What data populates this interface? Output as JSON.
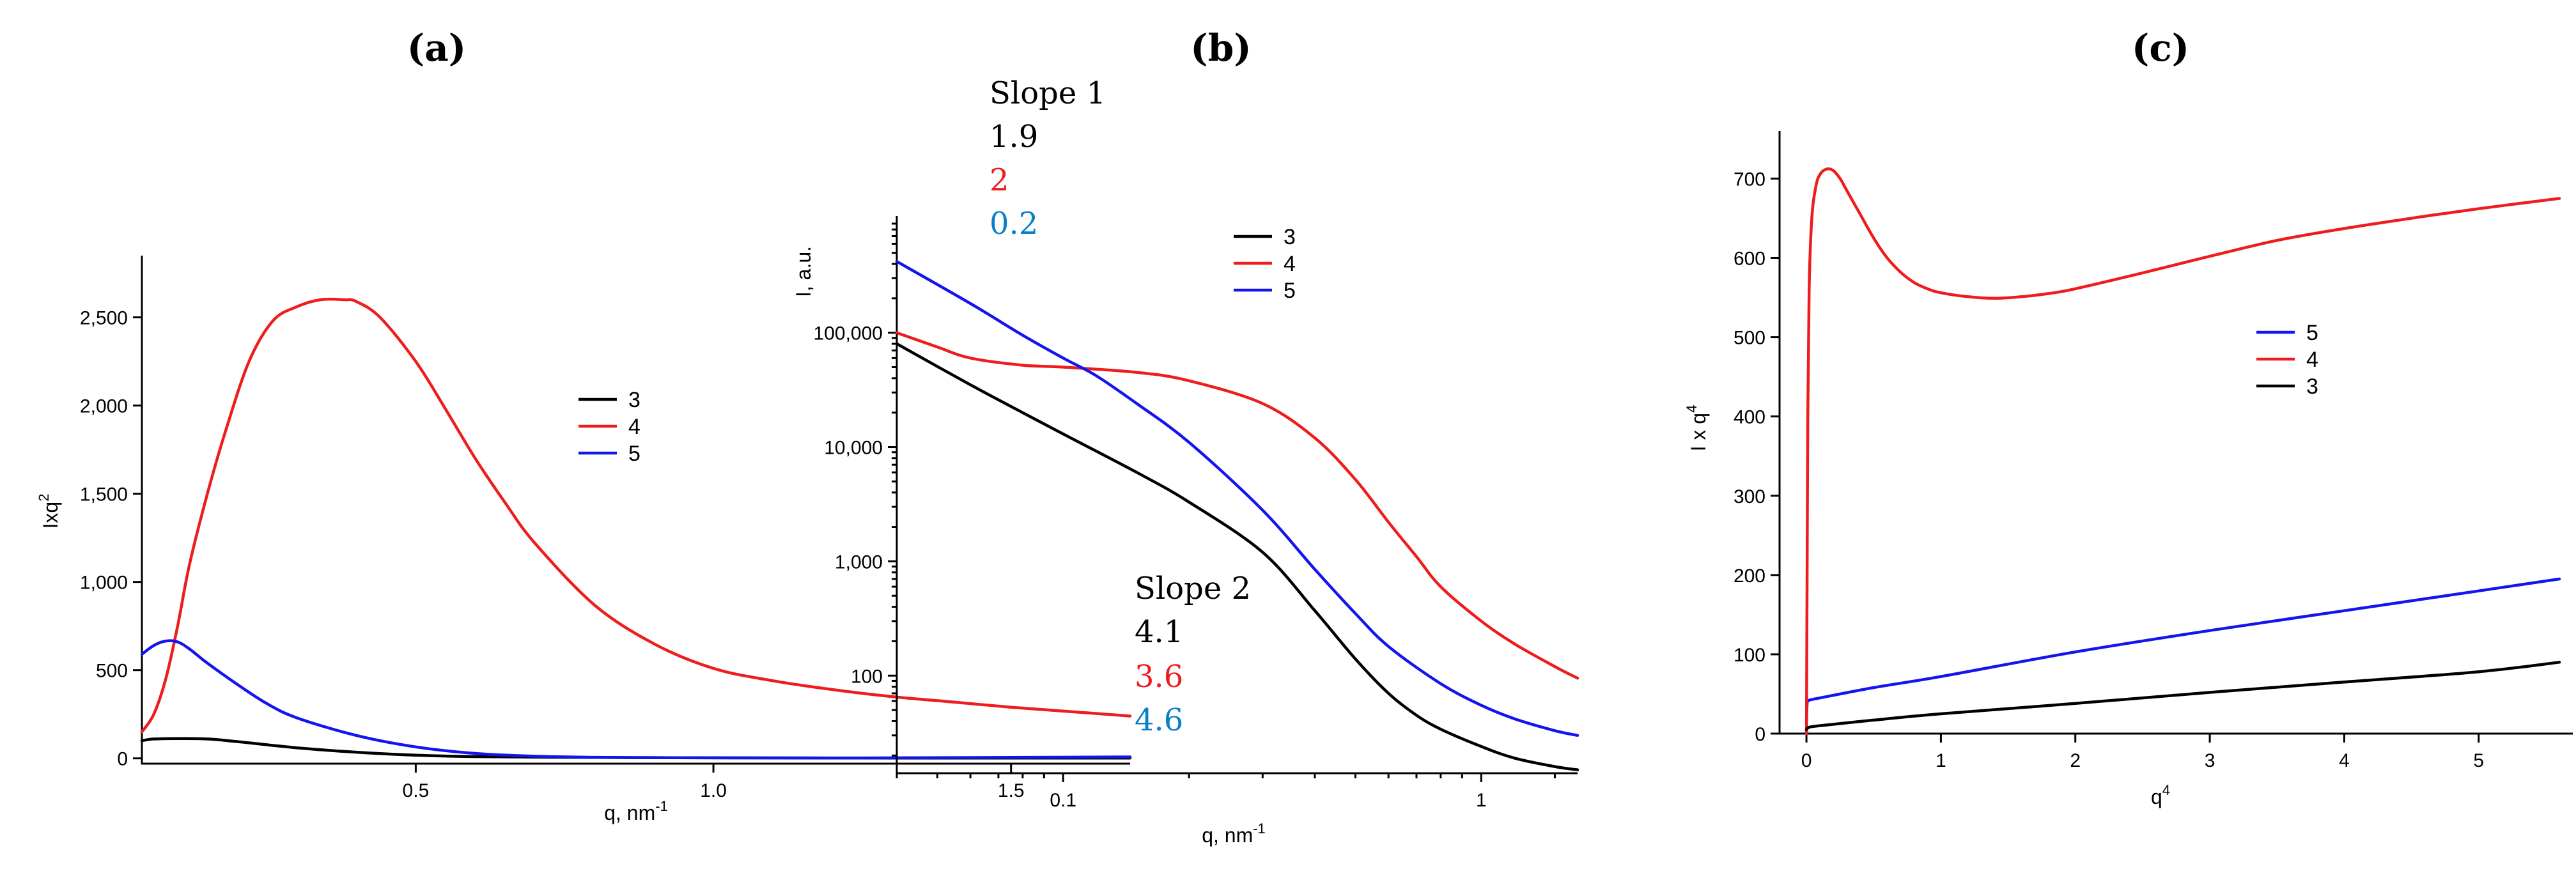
{
  "colors": {
    "s3": "#000000",
    "s4": "#ee1c1c",
    "s5": "#1414ee",
    "cyan": "#0a7fc7"
  },
  "chart_data": [
    {
      "id": "a",
      "type": "line",
      "title": "(a)",
      "xlabel": "q, nm",
      "xlabel_sup": "-1",
      "ylabel": "Ixq",
      "ylabel_sup": "2",
      "xlim": [
        0.04,
        1.7
      ],
      "ylim": [
        -30,
        2850
      ],
      "xticks": [
        0.5,
        1.0,
        1.5
      ],
      "xtick_labels": [
        "0.5",
        "1.0",
        "1.5"
      ],
      "yticks": [
        0,
        500,
        1000,
        1500,
        2000,
        2500
      ],
      "ytick_labels": [
        "0",
        "500",
        "1,000",
        "1,500",
        "2,000",
        "2,500"
      ],
      "legend_position": "right",
      "series": [
        {
          "name": "3",
          "color": "#000000",
          "x": [
            0.04,
            0.06,
            0.1,
            0.15,
            0.2,
            0.3,
            0.4,
            0.5,
            0.6,
            0.8,
            1.0,
            1.3,
            1.7
          ],
          "y": [
            100,
            110,
            112,
            110,
            95,
            60,
            35,
            18,
            10,
            5,
            3,
            2,
            2
          ]
        },
        {
          "name": "4",
          "color": "#ee1c1c",
          "x": [
            0.04,
            0.06,
            0.08,
            0.1,
            0.12,
            0.15,
            0.18,
            0.22,
            0.26,
            0.3,
            0.34,
            0.38,
            0.4,
            0.44,
            0.5,
            0.55,
            0.6,
            0.65,
            0.7,
            0.8,
            0.9,
            1.0,
            1.1,
            1.2,
            1.3,
            1.4,
            1.5,
            1.6,
            1.7
          ],
          "y": [
            150,
            250,
            450,
            750,
            1100,
            1500,
            1850,
            2250,
            2480,
            2560,
            2600,
            2600,
            2590,
            2500,
            2250,
            1980,
            1700,
            1450,
            1220,
            870,
            650,
            510,
            440,
            390,
            350,
            320,
            290,
            265,
            240
          ]
        },
        {
          "name": "5",
          "color": "#1414ee",
          "x": [
            0.04,
            0.06,
            0.08,
            0.1,
            0.12,
            0.15,
            0.2,
            0.25,
            0.3,
            0.4,
            0.5,
            0.6,
            0.7,
            0.8,
            0.9,
            1.0,
            1.2,
            1.4,
            1.7
          ],
          "y": [
            590,
            640,
            665,
            660,
            620,
            540,
            420,
            310,
            230,
            130,
            65,
            28,
            12,
            6,
            4,
            3,
            2,
            4,
            8
          ]
        }
      ]
    },
    {
      "id": "b",
      "type": "line",
      "scale": "log-log",
      "title": "(b)",
      "xlabel": "q, nm",
      "xlabel_sup": "-1",
      "ylabel": "I, a.u.",
      "xlim": [
        0.04,
        1.7
      ],
      "ylim": [
        14,
        1050000
      ],
      "xticks": [
        0.1,
        1
      ],
      "xtick_labels": [
        "0.1",
        "1"
      ],
      "yticks": [
        100,
        1000,
        10000,
        100000
      ],
      "ytick_labels": [
        "100",
        "1,000",
        "10,000",
        "100,000"
      ],
      "legend_position": "top-right",
      "series": [
        {
          "name": "3",
          "color": "#000000",
          "x": [
            0.04,
            0.06,
            0.08,
            0.1,
            0.15,
            0.2,
            0.3,
            0.4,
            0.5,
            0.6,
            0.7,
            0.8,
            1.0,
            1.2,
            1.5,
            1.7
          ],
          "y": [
            80000,
            35000,
            20000,
            13000,
            6000,
            3300,
            1200,
            370,
            140,
            70,
            45,
            34,
            24,
            19,
            16,
            15
          ]
        },
        {
          "name": "4",
          "color": "#ee1c1c",
          "x": [
            0.04,
            0.05,
            0.06,
            0.08,
            0.1,
            0.15,
            0.2,
            0.3,
            0.4,
            0.5,
            0.6,
            0.7,
            0.8,
            1.0,
            1.2,
            1.5,
            1.7
          ],
          "y": [
            100000,
            75000,
            60000,
            52000,
            50000,
            45000,
            38000,
            24000,
            12000,
            5200,
            2200,
            1100,
            600,
            300,
            190,
            120,
            95
          ]
        },
        {
          "name": "5",
          "color": "#1414ee",
          "x": [
            0.04,
            0.06,
            0.08,
            0.1,
            0.12,
            0.15,
            0.2,
            0.3,
            0.4,
            0.5,
            0.6,
            0.8,
            1.0,
            1.2,
            1.5,
            1.7
          ],
          "y": [
            420000,
            180000,
            95000,
            60000,
            42000,
            24000,
            11000,
            2800,
            850,
            350,
            180,
            85,
            55,
            42,
            33,
            30
          ]
        }
      ],
      "annotations": {
        "slope1": {
          "label": "Slope 1",
          "values": [
            {
              "text": "1.9",
              "color": "#000000"
            },
            {
              "text": "2",
              "color": "#ee1c1c"
            },
            {
              "text": "0.2",
              "color": "#0a7fc7"
            }
          ]
        },
        "slope2": {
          "label": "Slope 2",
          "values": [
            {
              "text": "4.1",
              "color": "#000000"
            },
            {
              "text": "3.6",
              "color": "#ee1c1c"
            },
            {
              "text": "4.6",
              "color": "#0a7fc7"
            }
          ]
        }
      }
    },
    {
      "id": "c",
      "type": "line",
      "title": "(c)",
      "xlabel": "q",
      "xlabel_sup": "4",
      "ylabel": "I x q",
      "ylabel_sup": "4",
      "xlim": [
        -0.2,
        5.7
      ],
      "ylim": [
        0,
        760
      ],
      "xticks": [
        0,
        1,
        2,
        3,
        4,
        5
      ],
      "xtick_labels": [
        "0",
        "1",
        "2",
        "3",
        "4",
        "5"
      ],
      "yticks": [
        0,
        100,
        200,
        300,
        400,
        500,
        600,
        700
      ],
      "ytick_labels": [
        "0",
        "100",
        "200",
        "300",
        "400",
        "500",
        "600",
        "700"
      ],
      "legend_position": "right",
      "series": [
        {
          "name": "5",
          "color": "#1414ee",
          "x": [
            0,
            0.005,
            0.02,
            0.1,
            0.5,
            1,
            2,
            3,
            4,
            5,
            5.6
          ],
          "y": [
            0,
            38,
            42,
            45,
            58,
            72,
            103,
            130,
            155,
            180,
            195
          ]
        },
        {
          "name": "4",
          "color": "#ee1c1c",
          "x": [
            0,
            0.005,
            0.01,
            0.02,
            0.04,
            0.07,
            0.1,
            0.15,
            0.2,
            0.25,
            0.3,
            0.4,
            0.5,
            0.6,
            0.7,
            0.8,
            0.9,
            1.0,
            1.2,
            1.4,
            1.6,
            1.8,
            2.0,
            2.5,
            3.0,
            3.5,
            4.0,
            4.5,
            5.0,
            5.6
          ],
          "y": [
            0,
            200,
            400,
            560,
            650,
            690,
            705,
            712,
            710,
            700,
            685,
            655,
            625,
            600,
            582,
            569,
            561,
            556,
            551,
            549,
            551,
            555,
            561,
            581,
            602,
            622,
            637,
            650,
            662,
            675
          ]
        },
        {
          "name": "3",
          "color": "#000000",
          "x": [
            0,
            0.02,
            0.1,
            0.5,
            1,
            2,
            3,
            4,
            5,
            5.6
          ],
          "y": [
            5,
            8,
            10,
            17,
            25,
            38,
            52,
            65,
            78,
            90
          ]
        }
      ]
    }
  ]
}
